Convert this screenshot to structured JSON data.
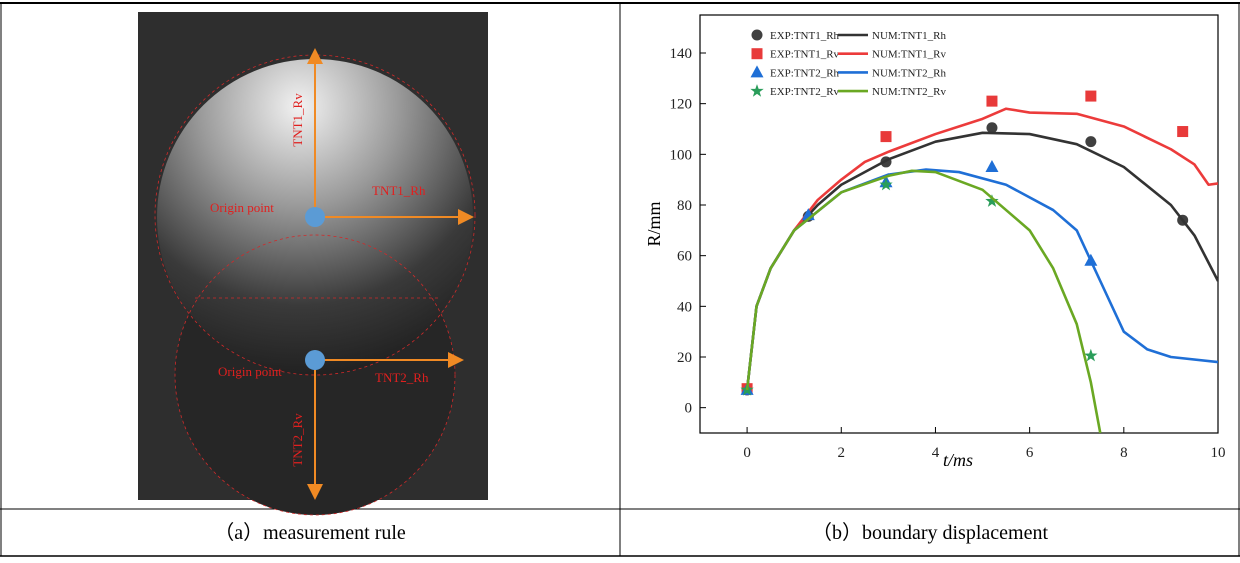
{
  "chart_data": {
    "type": "line",
    "xlabel": "t/ms",
    "ylabel": "R/mm",
    "xlim": [
      -1,
      10
    ],
    "xticks": [
      0,
      2,
      4,
      6,
      8,
      10
    ],
    "ylim": [
      -10,
      155
    ],
    "yticks": [
      0,
      20,
      40,
      60,
      80,
      100,
      120,
      140
    ],
    "series": [
      {
        "name": "EXP:TNT1_Rh",
        "kind": "markers",
        "marker": "circle",
        "color": "#404040",
        "x": [
          0,
          1.3,
          2.95,
          5.2,
          7.3,
          9.25
        ],
        "values": [
          7,
          75.5,
          97,
          110.5,
          105,
          74
        ]
      },
      {
        "name": "NUM:TNT1_Rh",
        "kind": "line",
        "color": "#333333",
        "x": [
          0,
          0.2,
          0.5,
          1,
          1.5,
          2,
          3,
          4,
          5,
          6,
          7,
          8,
          9,
          9.5,
          10
        ],
        "values": [
          7,
          40,
          55,
          70,
          80,
          88,
          98,
          105,
          108.5,
          108,
          104,
          95,
          80,
          68,
          50
        ]
      },
      {
        "name": "EXP:TNT1_Rv",
        "kind": "markers",
        "marker": "square",
        "color": "#e83a3a",
        "x": [
          0,
          2.95,
          5.2,
          7.3,
          9.25
        ],
        "values": [
          7.5,
          107,
          121,
          123,
          109
        ]
      },
      {
        "name": "NUM:TNT1_Rv",
        "kind": "line",
        "color": "#ec3b3b",
        "x": [
          0,
          0.2,
          0.5,
          1,
          1.5,
          2,
          2.5,
          3,
          4,
          5,
          5.5,
          6,
          7,
          8,
          9,
          9.5,
          9.8,
          10
        ],
        "values": [
          7,
          40,
          55,
          70,
          82,
          90,
          97,
          101,
          108,
          114,
          118,
          116.5,
          116,
          111,
          102,
          96,
          88,
          88.5
        ]
      },
      {
        "name": "EXP:TNT2_Rh",
        "kind": "markers",
        "marker": "triangle",
        "color": "#1f6fd6",
        "x": [
          0,
          1.3,
          2.95,
          5.2,
          7.3
        ],
        "values": [
          7,
          76,
          89,
          95,
          58
        ]
      },
      {
        "name": "NUM:TNT2_Rh",
        "kind": "line",
        "color": "#1f6fd6",
        "x": [
          0,
          0.2,
          0.5,
          1,
          2,
          3,
          3.8,
          4.5,
          5.5,
          6.5,
          7,
          7.5,
          8,
          8.5,
          9,
          10
        ],
        "values": [
          7,
          40,
          55,
          70,
          85,
          92,
          94,
          93,
          88,
          78,
          70,
          50,
          30,
          23,
          20,
          18
        ]
      },
      {
        "name": "EXP:TNT2_Rv",
        "kind": "markers",
        "marker": "star",
        "color": "#2a9d5a",
        "x": [
          0,
          2.95,
          5.2,
          7.3
        ],
        "values": [
          7,
          88,
          81.5,
          20.5
        ]
      },
      {
        "name": "NUM:TNT2_Rv",
        "kind": "line",
        "color": "#6aa823",
        "x": [
          0,
          0.2,
          0.5,
          1,
          2,
          3,
          3.5,
          4,
          5,
          6,
          6.5,
          7,
          7.3,
          7.5
        ],
        "values": [
          7,
          40,
          55,
          70,
          85,
          91.5,
          93.5,
          93,
          86,
          70,
          55,
          33,
          10,
          -10
        ]
      }
    ]
  },
  "panel_a": {
    "labels": [
      "TNT1_Rv",
      "TNT1_Rh",
      "Origin point",
      "Origin point",
      "TNT2_Rh",
      "TNT2_Rv"
    ]
  },
  "captions": [
    "（a）measurement rule",
    "（b）boundary displacement"
  ]
}
